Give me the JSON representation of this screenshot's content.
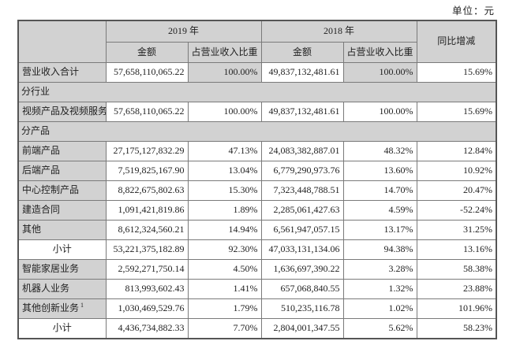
{
  "unit_label": "单位：元",
  "colors": {
    "header_bg": "#d2d2d2",
    "border": "#7a7a7a",
    "outer_border": "#555555",
    "text": "#1f1f1f"
  },
  "table": {
    "year_2019": "2019 年",
    "year_2018": "2018 年",
    "amount_header": "金额",
    "pct_header": "占营业收入比重",
    "yoy_header": "同比增减",
    "rows": [
      {
        "type": "data",
        "gray_pct": true,
        "label": "营业收入合计",
        "a2019": "57,658,110,065.22",
        "p2019": "100.00%",
        "a2018": "49,837,132,481.61",
        "p2018": "100.00%",
        "yoy": "15.69%"
      },
      {
        "type": "section",
        "label": "分行业"
      },
      {
        "type": "data",
        "label": "视频产品及视频服务",
        "a2019": "57,658,110,065.22",
        "p2019": "100.00%",
        "a2018": "49,837,132,481.61",
        "p2018": "100.00%",
        "yoy": "15.69%"
      },
      {
        "type": "section",
        "label": "分产品"
      },
      {
        "type": "data",
        "label": "前端产品",
        "a2019": "27,175,127,832.29",
        "p2019": "47.13%",
        "a2018": "24,083,382,887.01",
        "p2018": "48.32%",
        "yoy": "12.84%"
      },
      {
        "type": "data",
        "label": "后端产品",
        "a2019": "7,519,825,167.90",
        "p2019": "13.04%",
        "a2018": "6,779,290,973.76",
        "p2018": "13.60%",
        "yoy": "10.92%"
      },
      {
        "type": "data",
        "label": "中心控制产品",
        "a2019": "8,822,675,802.63",
        "p2019": "15.30%",
        "a2018": "7,323,448,788.51",
        "p2018": "14.70%",
        "yoy": "20.47%"
      },
      {
        "type": "data",
        "label": "建造合同",
        "a2019": "1,091,421,819.86",
        "p2019": "1.89%",
        "a2018": "2,285,061,427.63",
        "p2018": "4.59%",
        "yoy": "-52.24%"
      },
      {
        "type": "data",
        "label": "其他",
        "a2019": "8,612,324,560.21",
        "p2019": "14.94%",
        "a2018": "6,561,947,057.15",
        "p2018": "13.17%",
        "yoy": "31.25%"
      },
      {
        "type": "subtotal",
        "label": "小计",
        "a2019": "53,221,375,182.89",
        "p2019": "92.30%",
        "a2018": "47,033,131,134.06",
        "p2018": "94.38%",
        "yoy": "13.16%"
      },
      {
        "type": "data",
        "label": "智能家居业务",
        "a2019": "2,592,271,750.14",
        "p2019": "4.50%",
        "a2018": "1,636,697,390.22",
        "p2018": "3.28%",
        "yoy": "58.38%"
      },
      {
        "type": "data",
        "label": "机器人业务",
        "a2019": "813,993,602.43",
        "p2019": "1.41%",
        "a2018": "657,068,840.55",
        "p2018": "1.32%",
        "yoy": "23.88%"
      },
      {
        "type": "data",
        "label": "其他创新业务",
        "label_sup": "1",
        "a2019": "1,030,469,529.76",
        "p2019": "1.79%",
        "a2018": "510,235,116.78",
        "p2018": "1.02%",
        "yoy": "101.96%"
      },
      {
        "type": "subtotal",
        "label": "小计",
        "a2019": "4,436,734,882.33",
        "p2019": "7.70%",
        "a2018": "2,804,001,347.55",
        "p2018": "5.62%",
        "yoy": "58.23%"
      }
    ]
  }
}
